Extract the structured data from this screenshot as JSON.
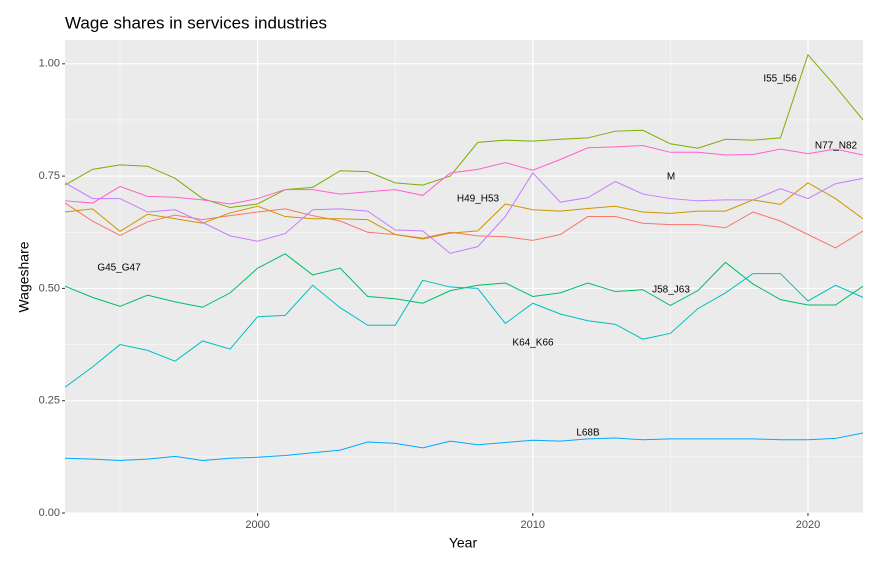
{
  "chart_data": {
    "type": "line",
    "title": "Wage shares in services industries",
    "x_label": "Year",
    "y_label": "Wageshare",
    "x": [
      1993,
      1994,
      1995,
      1996,
      1997,
      1998,
      1999,
      2000,
      2001,
      2002,
      2003,
      2004,
      2005,
      2006,
      2007,
      2008,
      2009,
      2010,
      2011,
      2012,
      2013,
      2014,
      2015,
      2016,
      2017,
      2018,
      2019,
      2020,
      2021,
      2022
    ],
    "xlim": [
      1993,
      2022
    ],
    "xticks": [
      2000,
      2010,
      2020
    ],
    "ylim": [
      0,
      1.053
    ],
    "yticks": [
      {
        "value": 0,
        "label": "0.00"
      },
      {
        "value": 0.25,
        "label": "0.25"
      },
      {
        "value": 0.5,
        "label": "0.50"
      },
      {
        "value": 0.75,
        "label": "0.75"
      },
      {
        "value": 1,
        "label": "1.00"
      }
    ],
    "grid": true,
    "series": [
      {
        "name": "G45_G47",
        "color": "#F8766D",
        "values": [
          0.69,
          0.65,
          0.618,
          0.648,
          0.663,
          0.653,
          0.662,
          0.67,
          0.677,
          0.662,
          0.65,
          0.625,
          0.62,
          0.612,
          0.625,
          0.617,
          0.615,
          0.607,
          0.62,
          0.66,
          0.66,
          0.645,
          0.642,
          0.642,
          0.635,
          0.67,
          0.65,
          0.62,
          0.59,
          0.628
        ]
      },
      {
        "name": "H49_H53",
        "color": "#CD9600",
        "values": [
          0.67,
          0.677,
          0.627,
          0.665,
          0.655,
          0.645,
          0.668,
          0.683,
          0.66,
          0.655,
          0.655,
          0.653,
          0.62,
          0.61,
          0.623,
          0.628,
          0.688,
          0.675,
          0.672,
          0.678,
          0.683,
          0.67,
          0.667,
          0.672,
          0.672,
          0.697,
          0.687,
          0.735,
          0.7,
          0.655
        ]
      },
      {
        "name": "I55_I56",
        "color": "#7CAE00",
        "values": [
          0.73,
          0.765,
          0.775,
          0.772,
          0.745,
          0.7,
          0.68,
          0.688,
          0.72,
          0.725,
          0.762,
          0.76,
          0.735,
          0.73,
          0.75,
          0.825,
          0.83,
          0.828,
          0.832,
          0.835,
          0.85,
          0.852,
          0.822,
          0.812,
          0.832,
          0.83,
          0.835,
          1.02,
          0.95,
          0.875
        ]
      },
      {
        "name": "J58_J63",
        "color": "#00BE67",
        "values": [
          0.505,
          0.48,
          0.46,
          0.485,
          0.47,
          0.458,
          0.49,
          0.545,
          0.577,
          0.53,
          0.545,
          0.482,
          0.477,
          0.467,
          0.495,
          0.507,
          0.512,
          0.482,
          0.49,
          0.512,
          0.493,
          0.497,
          0.462,
          0.495,
          0.558,
          0.51,
          0.475,
          0.463,
          0.463,
          0.505
        ]
      },
      {
        "name": "K64_K66",
        "color": "#00BFC4",
        "values": [
          0.28,
          0.325,
          0.375,
          0.362,
          0.338,
          0.383,
          0.365,
          0.437,
          0.44,
          0.507,
          0.457,
          0.418,
          0.418,
          0.518,
          0.503,
          0.5,
          0.422,
          0.467,
          0.443,
          0.428,
          0.42,
          0.387,
          0.4,
          0.455,
          0.49,
          0.533,
          0.533,
          0.472,
          0.507,
          0.48
        ]
      },
      {
        "name": "L68B",
        "color": "#00A9FF",
        "values": [
          0.122,
          0.12,
          0.117,
          0.12,
          0.126,
          0.117,
          0.122,
          0.124,
          0.128,
          0.134,
          0.14,
          0.158,
          0.155,
          0.145,
          0.16,
          0.152,
          0.157,
          0.162,
          0.16,
          0.165,
          0.167,
          0.163,
          0.165,
          0.165,
          0.165,
          0.165,
          0.163,
          0.163,
          0.166,
          0.178
        ]
      },
      {
        "name": "M",
        "color": "#C77CFF",
        "values": [
          0.735,
          0.7,
          0.7,
          0.67,
          0.675,
          0.647,
          0.617,
          0.605,
          0.622,
          0.675,
          0.677,
          0.672,
          0.63,
          0.628,
          0.578,
          0.593,
          0.66,
          0.757,
          0.692,
          0.702,
          0.738,
          0.71,
          0.7,
          0.695,
          0.697,
          0.697,
          0.722,
          0.7,
          0.733,
          0.745
        ]
      },
      {
        "name": "N77_N82",
        "color": "#FF61CC",
        "values": [
          0.695,
          0.69,
          0.727,
          0.705,
          0.703,
          0.697,
          0.688,
          0.7,
          0.72,
          0.72,
          0.71,
          0.715,
          0.72,
          0.707,
          0.757,
          0.765,
          0.78,
          0.763,
          0.787,
          0.813,
          0.815,
          0.818,
          0.803,
          0.803,
          0.797,
          0.798,
          0.81,
          0.8,
          0.81,
          0.797
        ]
      }
    ]
  }
}
